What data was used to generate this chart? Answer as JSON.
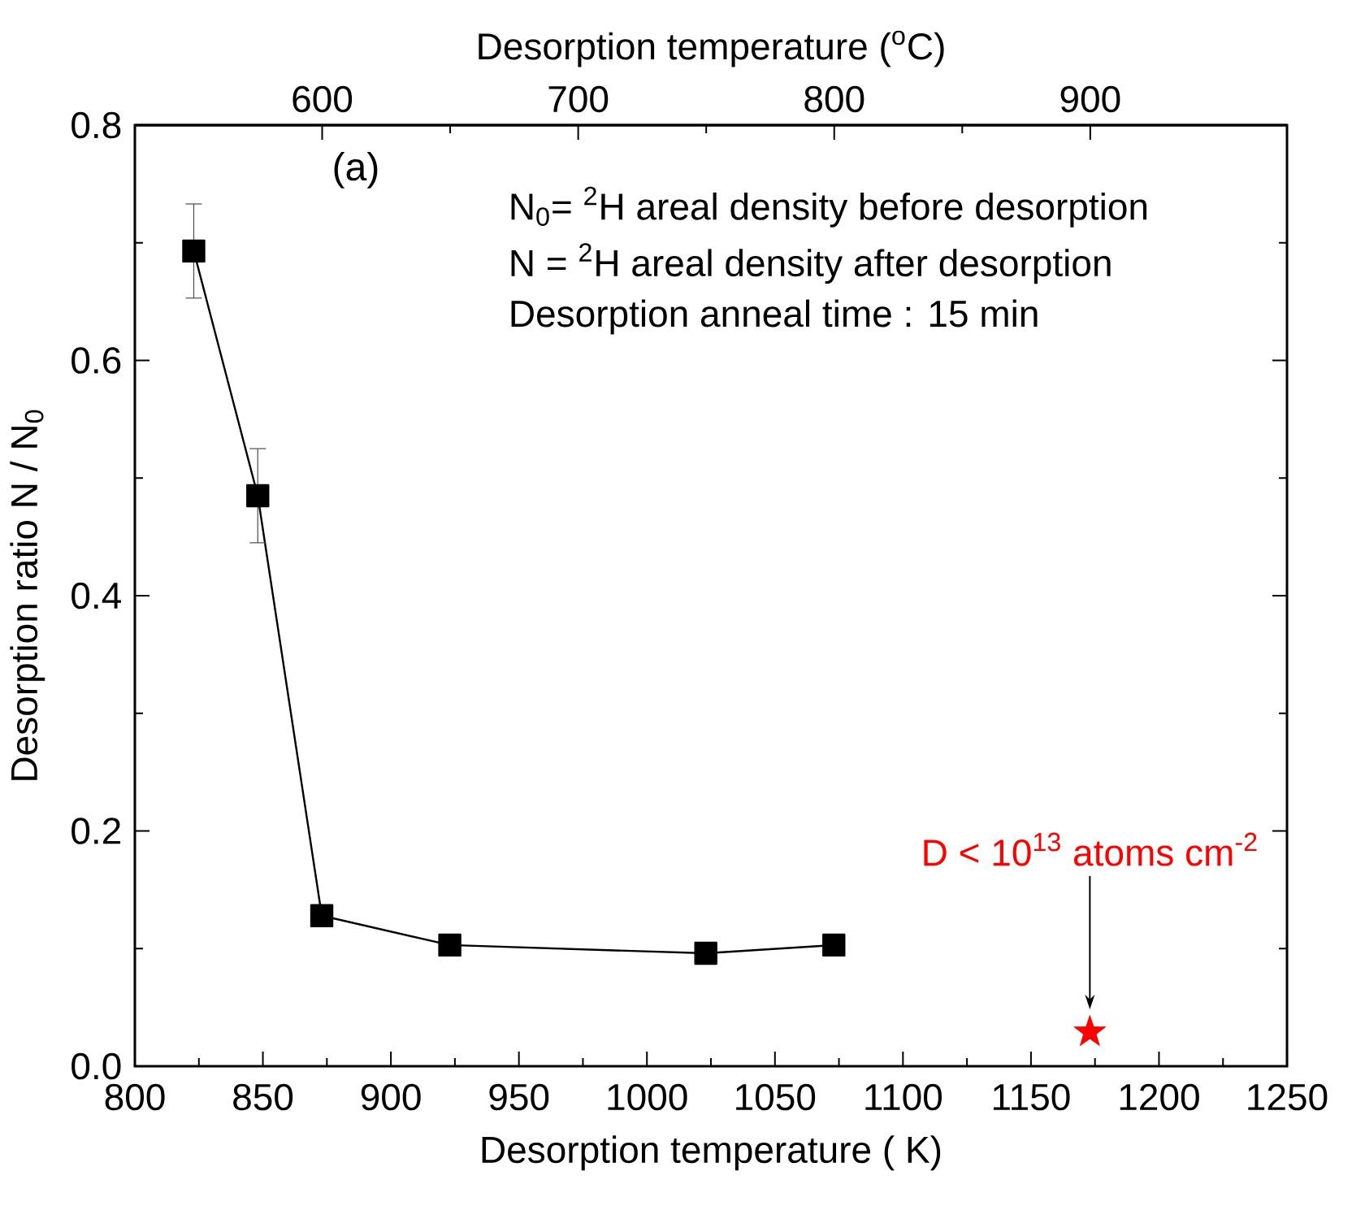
{
  "chart_data": {
    "type": "line",
    "xlabel": "Desorption temperature ( K)",
    "ylabel": "Desorption ratio N / N$_{0}$",
    "x2label": "Desorption temperature ($^{o}$C)",
    "xlim": [
      800,
      1250
    ],
    "xticks": [
      800,
      850,
      900,
      950,
      1000,
      1050,
      1100,
      1150,
      1200,
      1250
    ],
    "x2lim": [
      526.85,
      976.85
    ],
    "x2ticks": [
      600,
      700,
      800,
      900
    ],
    "ylim": [
      0,
      0.8
    ],
    "yticks": [
      {
        "value": 0,
        "label": "0.0"
      },
      0.2,
      0.4,
      0.6,
      0.8
    ],
    "series": [
      {
        "color": "#000000",
        "marker": "square",
        "line_style": "solid",
        "x": [
          823,
          848,
          873,
          923,
          1023,
          1073
        ],
        "values": [
          0.693,
          0.485,
          0.128,
          0.103,
          0.096,
          0.103
        ],
        "errors": [
          0.04,
          0.04,
          null,
          null,
          null,
          null
        ]
      },
      {
        "type": "scatter",
        "color": "#ff0000",
        "marker": "star",
        "x": [
          1173
        ],
        "values": [
          0.029
        ]
      }
    ],
    "annotations": [
      "(a)",
      "N$_{0}$= $^{2}$H areal density before desorption",
      "N = $^{2}$H areal density after desorption",
      "Desorption anneal time : 15 min",
      "D < 10$^{13}$ atoms cm$^{-2}$"
    ]
  }
}
